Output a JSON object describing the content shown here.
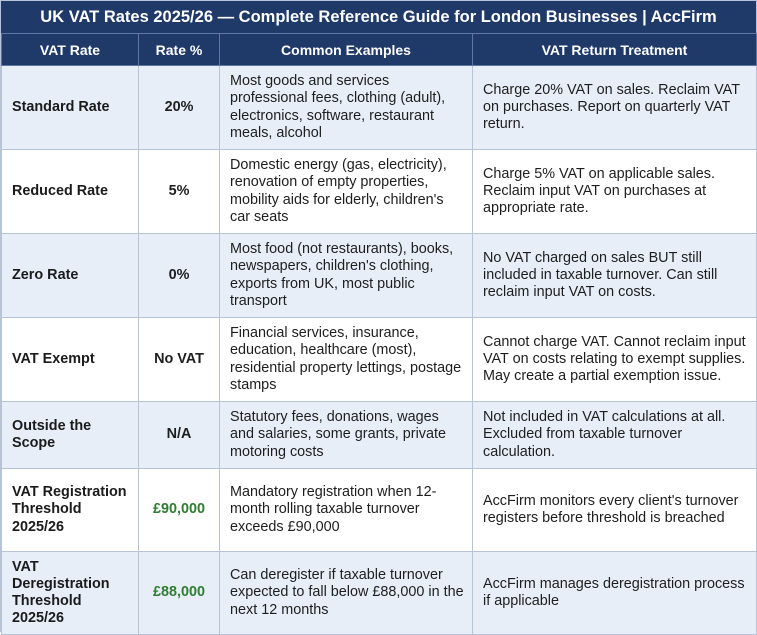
{
  "title": "UK VAT Rates 2025/26 — Complete Reference Guide for London Businesses | AccFirm",
  "columns": [
    "VAT Rate",
    "Rate %",
    "Common Examples",
    "VAT Return Treatment"
  ],
  "rows": [
    {
      "name": "Standard Rate",
      "rate": "20%",
      "examples": "Most goods and services professional fees, clothing (adult), electronics, software, restaurant meals, alcohol",
      "treatment": "Charge 20% VAT on sales. Reclaim VAT on purchases. Report on quarterly VAT return."
    },
    {
      "name": "Reduced Rate",
      "rate": "5%",
      "examples": "Domestic energy (gas, electricity), renovation of empty properties, mobility aids for elderly, children's car seats",
      "treatment": "Charge 5% VAT on applicable sales. Reclaim input VAT on purchases at appropriate rate."
    },
    {
      "name": "Zero Rate",
      "rate": "0%",
      "examples": "Most food (not restaurants), books, newspapers, children's clothing, exports from UK, most public transport",
      "treatment": "No VAT charged on sales BUT still included in taxable turnover. Can still reclaim input VAT on costs."
    },
    {
      "name": "VAT Exempt",
      "rate": "No VAT",
      "examples": "Financial services, insurance, education, healthcare (most), residential property lettings, postage stamps",
      "treatment": "Cannot charge VAT. Cannot reclaim input VAT on costs relating to exempt supplies. May create a partial exemption issue."
    },
    {
      "name": "Outside the Scope",
      "rate": "N/A",
      "examples": "Statutory fees, donations, wages and salaries, some grants, private motoring costs",
      "treatment": "Not included in VAT calculations at all. Excluded from taxable turnover calculation."
    },
    {
      "name": "VAT Registration Threshold 2025/26",
      "rate": "£90,000",
      "examples": "Mandatory registration when 12-month rolling taxable turnover exceeds £90,000",
      "treatment": "AccFirm monitors every client's turnover registers before threshold is breached"
    },
    {
      "name": "VAT Deregistration Threshold 2025/26",
      "rate": "£88,000",
      "examples": "Can deregister if taxable turnover expected to fall below £88,000 in the next 12 months",
      "treatment": "AccFirm manages deregistration process if applicable"
    }
  ],
  "colors": {
    "header_bg": "#1f3a68",
    "row_alt_bg": "#e8eef8",
    "threshold_value": "#2e7d32"
  }
}
